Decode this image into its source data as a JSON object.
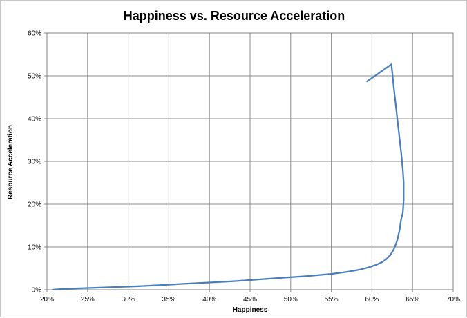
{
  "chart_data": {
    "type": "line",
    "title": "Happiness vs. Resource Acceleration",
    "xlabel": "Happiness",
    "ylabel": "Resource Acceleration",
    "xlim": [
      0.2,
      0.7
    ],
    "ylim": [
      0.0,
      0.6
    ],
    "xticks": [
      "20%",
      "25%",
      "30%",
      "35%",
      "40%",
      "45%",
      "50%",
      "55%",
      "60%",
      "65%",
      "70%"
    ],
    "yticks": [
      "0%",
      "10%",
      "20%",
      "30%",
      "40%",
      "50%",
      "60%"
    ],
    "grid": true,
    "line_color": "#4a7ebb",
    "series": [
      {
        "x": [
          0.207,
          0.22,
          0.25,
          0.28,
          0.31,
          0.34,
          0.37,
          0.4,
          0.43,
          0.46,
          0.49,
          0.52,
          0.55,
          0.57,
          0.585,
          0.595,
          0.605,
          0.612,
          0.618,
          0.623,
          0.627,
          0.631,
          0.634,
          0.636,
          0.638,
          0.639,
          0.639,
          0.638,
          0.636,
          0.633,
          0.63,
          0.627,
          0.624,
          0.594
        ],
        "y": [
          0.0,
          0.002,
          0.004,
          0.006,
          0.008,
          0.011,
          0.014,
          0.017,
          0.02,
          0.024,
          0.028,
          0.032,
          0.037,
          0.042,
          0.047,
          0.052,
          0.058,
          0.064,
          0.072,
          0.082,
          0.095,
          0.115,
          0.14,
          0.165,
          0.18,
          0.21,
          0.25,
          0.28,
          0.32,
          0.37,
          0.42,
          0.47,
          0.527,
          0.487
        ]
      }
    ]
  }
}
